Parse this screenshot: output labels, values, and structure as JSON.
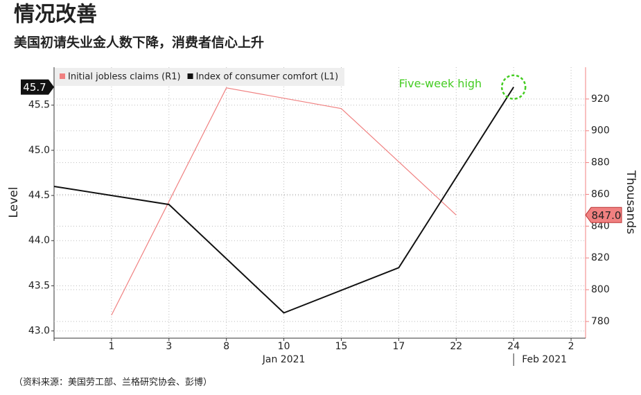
{
  "chart_data": {
    "type": "line",
    "title": "情况改善",
    "subtitle": "美国初请失业金人数下降，消费者信心上升",
    "source": "（资料来源：美国劳工部、兰格研究协会、彭博）",
    "categories": [
      null,
      "1",
      "3",
      "8",
      "10",
      "15",
      "17",
      "22",
      "24",
      "2"
    ],
    "x_groups": [
      "Jan 2021",
      "Feb 2021"
    ],
    "ylabel": "Level",
    "y2label": "Thousands",
    "ylim": [
      42.92,
      45.92
    ],
    "yticks": [
      {
        "value": 43.0,
        "label": "43.0"
      },
      {
        "value": 43.5,
        "label": "43.5"
      },
      {
        "value": 44.0,
        "label": "44.0"
      },
      {
        "value": 44.5,
        "label": "44.5"
      },
      {
        "value": 45.0,
        "label": "45.0"
      },
      {
        "value": 45.5,
        "label": "45.5"
      }
    ],
    "y2lim": [
      769.5,
      940
    ],
    "y2ticks": [
      780,
      800,
      820,
      840,
      860,
      880,
      900,
      920
    ],
    "grid": true,
    "legend": "top-left",
    "series": [
      {
        "name": "Initial jobless claims (R1)",
        "color": "#f08080",
        "axis": "y2",
        "x": [
          "1",
          "8",
          "15",
          "22"
        ],
        "values": [
          784,
          927,
          914,
          847
        ],
        "value_labels": [
          null,
          null,
          null,
          "847.0"
        ]
      },
      {
        "name": "Index of consumer comfort (L1)",
        "color": "#111111",
        "axis": "y",
        "x": [
          null,
          "3",
          "10",
          "17",
          "24"
        ],
        "values": [
          44.6,
          44.4,
          43.2,
          43.7,
          45.7
        ],
        "value_labels": [
          null,
          null,
          null,
          null,
          "45.7"
        ]
      }
    ],
    "annotation": {
      "text": "Five-week high",
      "color": "#44cc22"
    }
  }
}
